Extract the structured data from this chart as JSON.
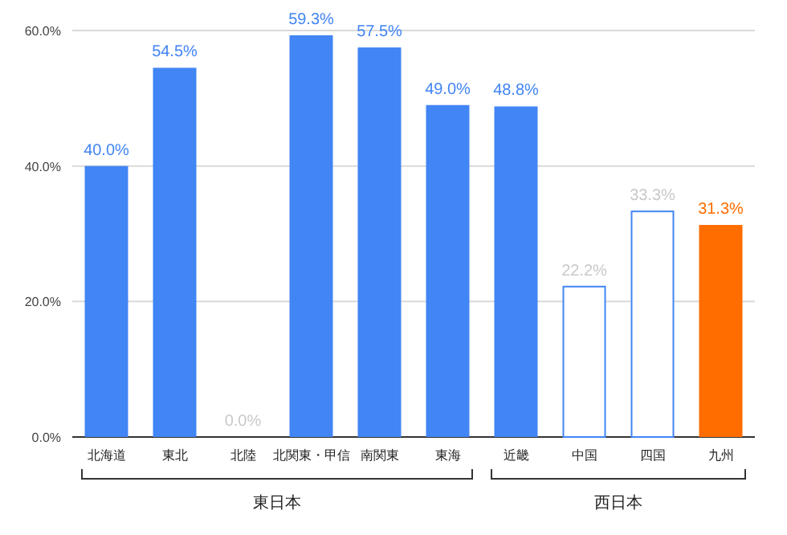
{
  "chart_data": {
    "type": "bar",
    "categories": [
      "北海道",
      "東北",
      "北陸",
      "北関東・甲信",
      "南関東",
      "東海",
      "近畿",
      "中国",
      "四国",
      "九州"
    ],
    "values": [
      40.0,
      54.5,
      0.0,
      59.3,
      57.5,
      49.0,
      48.8,
      22.2,
      33.3,
      31.3
    ],
    "colors": [
      "#4285f4",
      "#4285f4",
      "#4285f4",
      "#4285f4",
      "#4285f4",
      "#4285f4",
      "#4285f4",
      "#ffffff",
      "#ffffff",
      "#ff6d01"
    ],
    "value_labels": [
      "40.0%",
      "54.5%",
      "0.0%",
      "59.3%",
      "57.5%",
      "49.0%",
      "48.8%",
      "22.2%",
      "33.3%",
      "31.3%"
    ],
    "ylim": [
      0,
      60
    ],
    "yticks": [
      {
        "value": 0,
        "label": "0.0%"
      },
      {
        "value": 20,
        "label": "20.0%"
      },
      {
        "value": 40,
        "label": "40.0%"
      },
      {
        "value": 60,
        "label": "60.0%"
      }
    ],
    "grid": "y",
    "annotations": [
      "東日本",
      "西日本"
    ]
  }
}
